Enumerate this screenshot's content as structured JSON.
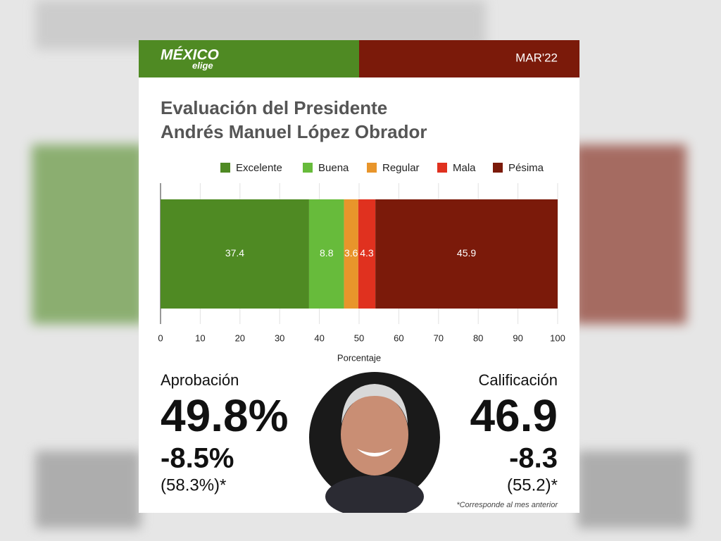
{
  "header": {
    "logo": "MÉXICO",
    "logo_sub": "elige",
    "date": "MAR'22"
  },
  "chart_data": {
    "type": "stacked_bar_horizontal",
    "title_lines": [
      "Evaluación del Presidente",
      "Andrés Manuel López Obrador"
    ],
    "categories": [
      null
    ],
    "series": [
      {
        "name": "Excelente",
        "color": "#4f8a23",
        "values": [
          37.4
        ]
      },
      {
        "name": "Buena",
        "color": "#67bb3b",
        "values": [
          8.8
        ]
      },
      {
        "name": "Regular",
        "color": "#e8952b",
        "values": [
          3.6
        ]
      },
      {
        "name": "Mala",
        "color": "#e0311f",
        "values": [
          4.3
        ]
      },
      {
        "name": "Pésima",
        "color": "#7b1a0a",
        "values": [
          45.9
        ]
      }
    ],
    "xlim": [
      0,
      100
    ],
    "xticks": [
      0,
      10,
      20,
      30,
      40,
      50,
      60,
      70,
      80,
      90,
      100
    ],
    "xlabel": "Porcentaje",
    "grid": true,
    "legend": "top"
  },
  "approval": {
    "label": "Aprobación",
    "value": "49.8%",
    "change": "-8.5%",
    "previous": "(58.3%)*"
  },
  "rating": {
    "label": "Calificación",
    "value": "46.9",
    "change": "-8.3",
    "previous": "(55.2)*"
  },
  "footnote": "*Corresponde al mes anterior"
}
